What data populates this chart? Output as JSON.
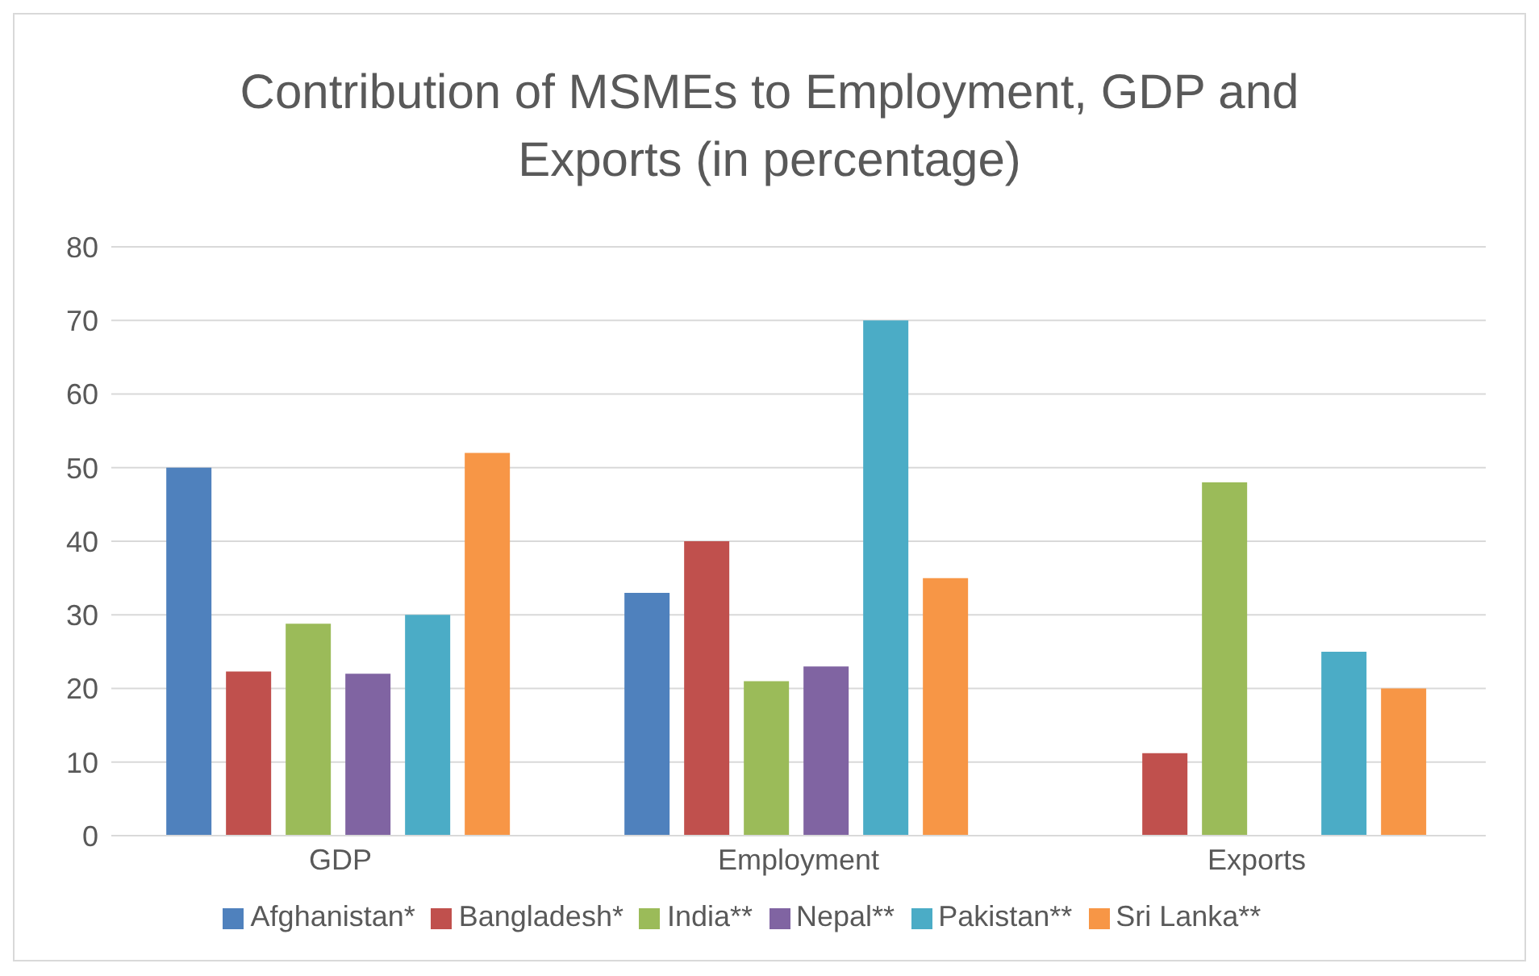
{
  "chart_data": {
    "type": "bar",
    "title": "Contribution of MSMEs to Employment, GDP and Exports (in percentage)",
    "categories": [
      "GDP",
      "Employment",
      "Exports"
    ],
    "series": [
      {
        "name": "Afghanistan*",
        "color": "#4f81bd",
        "values": [
          50,
          33,
          null
        ]
      },
      {
        "name": "Bangladesh*",
        "color": "#c0504d",
        "values": [
          22.3,
          40,
          11.2
        ]
      },
      {
        "name": "India**",
        "color": "#9bbb59",
        "values": [
          28.8,
          21,
          48
        ]
      },
      {
        "name": "Nepal**",
        "color": "#8064a2",
        "values": [
          22,
          23,
          null
        ]
      },
      {
        "name": "Pakistan**",
        "color": "#4bacc6",
        "values": [
          30,
          70,
          25
        ]
      },
      {
        "name": "Sri Lanka**",
        "color": "#f79646",
        "values": [
          52,
          35,
          20
        ]
      }
    ],
    "ylim": [
      0,
      80
    ],
    "yticks": [
      0,
      10,
      20,
      30,
      40,
      50,
      60,
      70,
      80
    ],
    "grid": "y",
    "legend": "bottom"
  }
}
